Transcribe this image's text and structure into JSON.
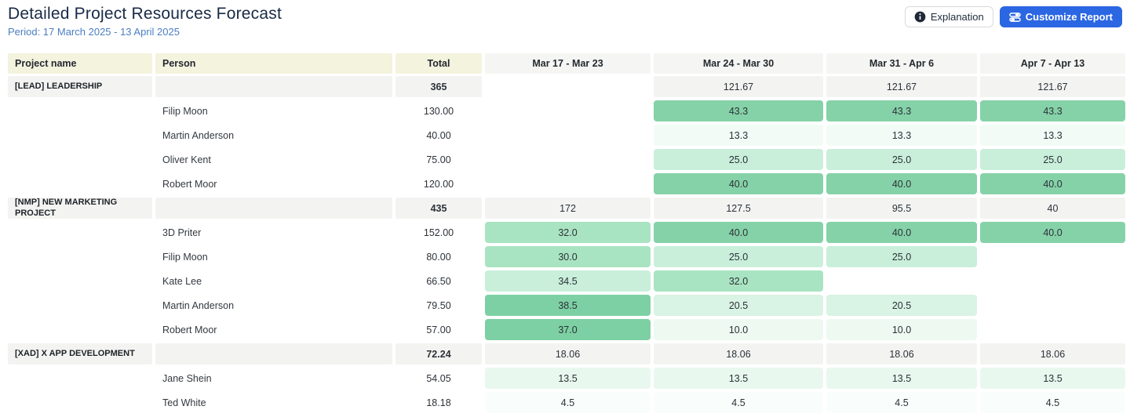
{
  "header": {
    "title": "Detailed Project Resources Forecast",
    "period": "Period: 17 March 2025 - 13 April 2025",
    "explanation_button": "Explanation",
    "customize_button": "Customize Report"
  },
  "colors": {
    "accent_blue": "#2b66e3",
    "period_text": "#4a7ec2",
    "header_yellow": "#f3f3de",
    "header_gray": "#f5f5f3",
    "group_row_gray": "#f3f4f2",
    "palette": {
      "g5": "#7dd0a3",
      "g4": "#85d2a8",
      "g3": "#a9e4c2",
      "g2": "#c9efdb",
      "g1": "#d9f3e4",
      "f13": "#f2fbf6",
      "f10": "#edf9f1",
      "mint": "#e8f8ee",
      "faint": "#f9fdfb"
    }
  },
  "table": {
    "columns": [
      "Project name",
      "Person",
      "Total",
      "Mar 17 - Mar 23",
      "Mar 24 - Mar 30",
      "Mar 31 - Apr 6",
      "Apr 7 - Apr 13"
    ],
    "rows": [
      {
        "type": "group",
        "project": "[LEAD] LEADERSHIP",
        "person": "",
        "total": "365",
        "cells": [
          null,
          {
            "v": "121.67"
          },
          {
            "v": "121.67"
          },
          {
            "v": "121.67"
          }
        ]
      },
      {
        "type": "person",
        "project": "",
        "person": "Filip Moon",
        "total": "130.00",
        "cells": [
          null,
          {
            "v": "43.3",
            "c": "g4"
          },
          {
            "v": "43.3",
            "c": "g4"
          },
          {
            "v": "43.3",
            "c": "g4"
          }
        ]
      },
      {
        "type": "person",
        "project": "",
        "person": "Martin Anderson",
        "total": "40.00",
        "cells": [
          null,
          {
            "v": "13.3",
            "c": "f13"
          },
          {
            "v": "13.3",
            "c": "f13"
          },
          {
            "v": "13.3",
            "c": "f13"
          }
        ]
      },
      {
        "type": "person",
        "project": "",
        "person": "Oliver Kent",
        "total": "75.00",
        "cells": [
          null,
          {
            "v": "25.0",
            "c": "g2"
          },
          {
            "v": "25.0",
            "c": "g2"
          },
          {
            "v": "25.0",
            "c": "g2"
          }
        ]
      },
      {
        "type": "person",
        "project": "",
        "person": "Robert Moor",
        "total": "120.00",
        "cells": [
          null,
          {
            "v": "40.0",
            "c": "g4"
          },
          {
            "v": "40.0",
            "c": "g4"
          },
          {
            "v": "40.0",
            "c": "g4"
          }
        ]
      },
      {
        "type": "group",
        "project": "[NMP] NEW MARKETING PROJECT",
        "person": "",
        "total": "435",
        "cells": [
          {
            "v": "172"
          },
          {
            "v": "127.5"
          },
          {
            "v": "95.5"
          },
          {
            "v": "40"
          }
        ]
      },
      {
        "type": "person",
        "project": "",
        "person": "3D Priter",
        "total": "152.00",
        "cells": [
          {
            "v": "32.0",
            "c": "g3"
          },
          {
            "v": "40.0",
            "c": "g4"
          },
          {
            "v": "40.0",
            "c": "g4"
          },
          {
            "v": "40.0",
            "c": "g4"
          }
        ]
      },
      {
        "type": "person",
        "project": "",
        "person": "Filip Moon",
        "total": "80.00",
        "cells": [
          {
            "v": "30.0",
            "c": "g3"
          },
          {
            "v": "25.0",
            "c": "g2"
          },
          {
            "v": "25.0",
            "c": "g2"
          },
          null
        ]
      },
      {
        "type": "person",
        "project": "",
        "person": "Kate Lee",
        "total": "66.50",
        "cells": [
          {
            "v": "34.5",
            "c": "g2"
          },
          {
            "v": "32.0",
            "c": "g3"
          },
          null,
          null
        ]
      },
      {
        "type": "person",
        "project": "",
        "person": "Martin Anderson",
        "total": "79.50",
        "cells": [
          {
            "v": "38.5",
            "c": "g5"
          },
          {
            "v": "20.5",
            "c": "g1"
          },
          {
            "v": "20.5",
            "c": "g1"
          },
          null
        ]
      },
      {
        "type": "person",
        "project": "",
        "person": "Robert Moor",
        "total": "57.00",
        "cells": [
          {
            "v": "37.0",
            "c": "g5"
          },
          {
            "v": "10.0",
            "c": "f10"
          },
          {
            "v": "10.0",
            "c": "f10"
          },
          null
        ]
      },
      {
        "type": "group",
        "project": "[XAD] X APP DEVELOPMENT",
        "person": "",
        "total": "72.24",
        "cells": [
          {
            "v": "18.06"
          },
          {
            "v": "18.06"
          },
          {
            "v": "18.06"
          },
          {
            "v": "18.06"
          }
        ]
      },
      {
        "type": "person",
        "project": "",
        "person": "Jane Shein",
        "total": "54.05",
        "cells": [
          {
            "v": "13.5",
            "c": "mint"
          },
          {
            "v": "13.5",
            "c": "mint"
          },
          {
            "v": "13.5",
            "c": "mint"
          },
          {
            "v": "13.5",
            "c": "mint"
          }
        ]
      },
      {
        "type": "person",
        "project": "",
        "person": "Ted White",
        "total": "18.18",
        "cells": [
          {
            "v": "4.5",
            "c": "faint"
          },
          {
            "v": "4.5",
            "c": "faint"
          },
          {
            "v": "4.5",
            "c": "faint"
          },
          {
            "v": "4.5",
            "c": "faint"
          }
        ]
      }
    ]
  }
}
